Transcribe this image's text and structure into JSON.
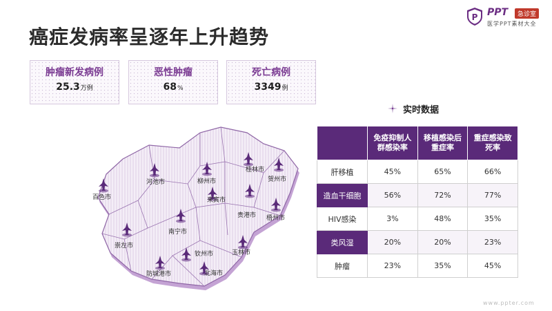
{
  "page": {
    "title": "癌症发病率呈逐年上升趋势",
    "footer_url": "www.ppter.com"
  },
  "logo": {
    "brand": "PPT",
    "tag": "急诊室",
    "subtitle": "医学PPT素材大全",
    "icon": "shield-p-icon"
  },
  "stats": [
    {
      "label": "肿瘤新发病例",
      "value": "25.3",
      "unit": "万例"
    },
    {
      "label": "恶性肿瘤",
      "value": "68",
      "unit": "%"
    },
    {
      "label": "死亡病例",
      "value": "3349",
      "unit": "例"
    }
  ],
  "map": {
    "icon": "map-pin-icon",
    "cities": [
      {
        "name": "桂林市"
      },
      {
        "name": "柳州市"
      },
      {
        "name": "贺州市"
      },
      {
        "name": "河池市"
      },
      {
        "name": "百色市"
      },
      {
        "name": "来宾市"
      },
      {
        "name": "梧州市"
      },
      {
        "name": "贵港市"
      },
      {
        "name": "南宁市"
      },
      {
        "name": "崇左市"
      },
      {
        "name": "玉林市"
      },
      {
        "name": "钦州市"
      },
      {
        "name": "防城港市"
      },
      {
        "name": "北海市"
      }
    ]
  },
  "realtime": {
    "title": "实时数据",
    "icon": "sparkle-icon",
    "columns": [
      "",
      "免疫抑制人群感染率",
      "移植感染后重症率",
      "重症感染致死率"
    ],
    "column_lines": [
      [],
      [
        "免疫抑制人",
        "群感染率"
      ],
      [
        "移植感染后",
        "重症率"
      ],
      [
        "重症感染致",
        "死率"
      ]
    ],
    "rows": [
      {
        "name": "肝移植",
        "values": [
          "45%",
          "65%",
          "66%"
        ]
      },
      {
        "name": "造血干细胞",
        "values": [
          "56%",
          "72%",
          "77%"
        ]
      },
      {
        "name": "HIV感染",
        "values": [
          "3%",
          "48%",
          "35%"
        ]
      },
      {
        "name": "类风湿",
        "values": [
          "20%",
          "20%",
          "23%"
        ]
      },
      {
        "name": "肿瘤",
        "values": [
          "23%",
          "35%",
          "45%"
        ]
      }
    ]
  },
  "colors": {
    "accent": "#5a2a79",
    "accent_light": "#7a3a92",
    "map_fill": "#ede3f2",
    "map_edge": "#a37ab8"
  }
}
